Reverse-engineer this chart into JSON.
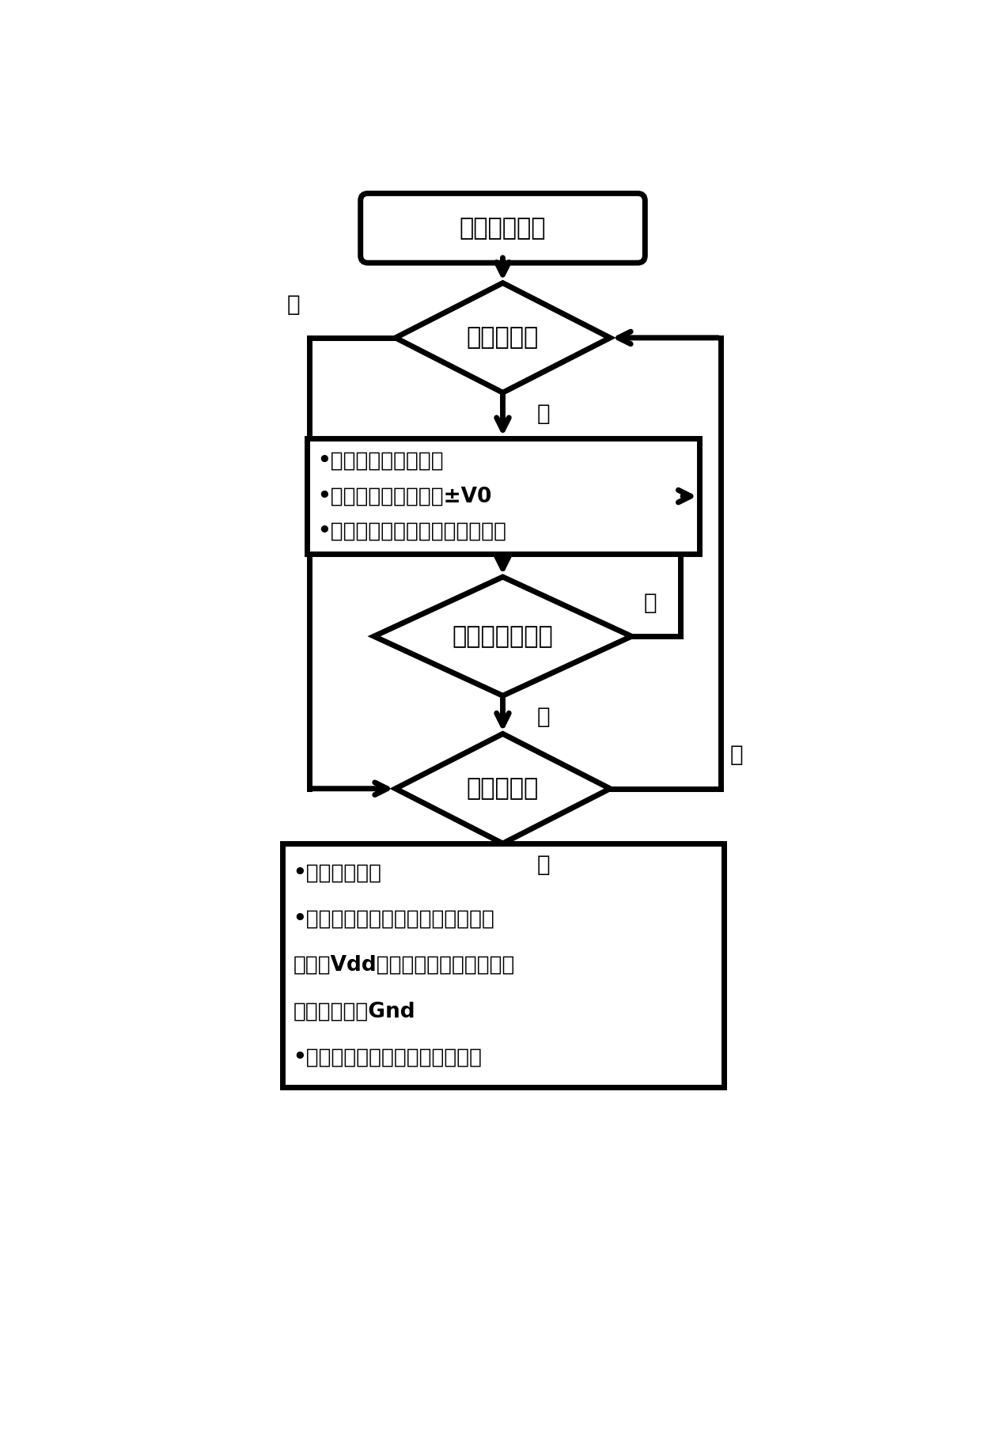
{
  "bg_color": "#ffffff",
  "line_color": "#000000",
  "line_width": 5.0,
  "arrow_lw": 5.0,
  "font_color": "#000000",
  "font_size_main": 22,
  "font_size_label": 20,
  "font_size_box": 19,
  "title_text": "开始电路操作",
  "diamond1_text": "施加输入？",
  "box1_lines": [
    "•更新相应的选通信号",
    "•向目标忆阻施加电压±V0",
    "•将其他忆阻的开关位置置为悬空"
  ],
  "diamond2_text": "施加其他输入？",
  "diamond3_text": "读取输出？",
  "box2_lines": [
    "•重置选通信号",
    "•将上端电阻器所连接多路选择器忆",
    "阻置于Vdd，最下端忆阻器所连接多",
    "路原则器置于Gnd",
    "•将其他忆阻的开关位置置为悬空"
  ],
  "yes_label": "是",
  "no_label": "否"
}
